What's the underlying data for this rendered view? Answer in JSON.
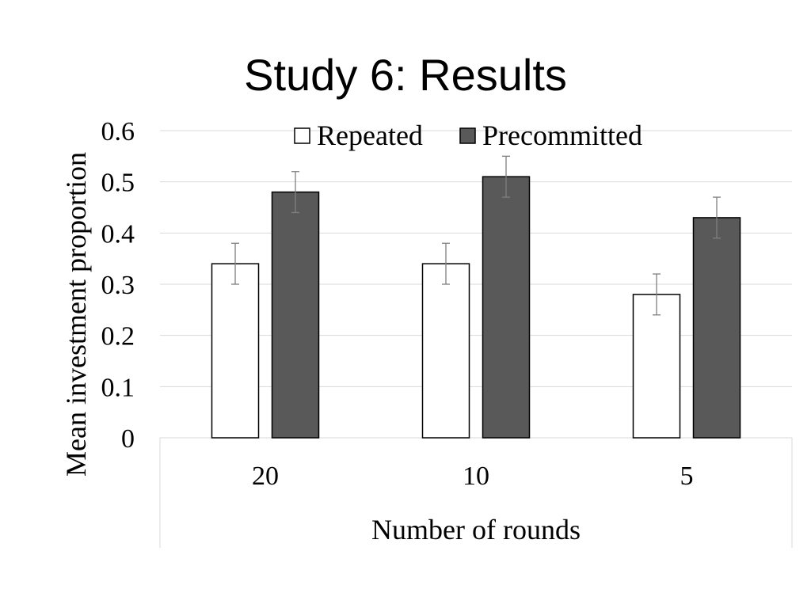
{
  "slide": {
    "title": "Study 6: Results"
  },
  "chart_data": {
    "type": "bar",
    "title": "",
    "xlabel": "Number of rounds",
    "ylabel": "Mean investment proportion",
    "categories": [
      "20",
      "10",
      "5"
    ],
    "ylim": [
      0,
      0.6
    ],
    "yticks": [
      "0",
      "0.1",
      "0.2",
      "0.3",
      "0.4",
      "0.5",
      "0.6"
    ],
    "grid": true,
    "legend_position": "top",
    "series": [
      {
        "name": "Repeated",
        "values": [
          0.34,
          0.34,
          0.28
        ],
        "error": [
          0.04,
          0.04,
          0.04
        ],
        "color": "#ffffff"
      },
      {
        "name": "Precommitted",
        "values": [
          0.48,
          0.51,
          0.43
        ],
        "error": [
          0.04,
          0.04,
          0.04
        ],
        "color": "#595959"
      }
    ]
  }
}
